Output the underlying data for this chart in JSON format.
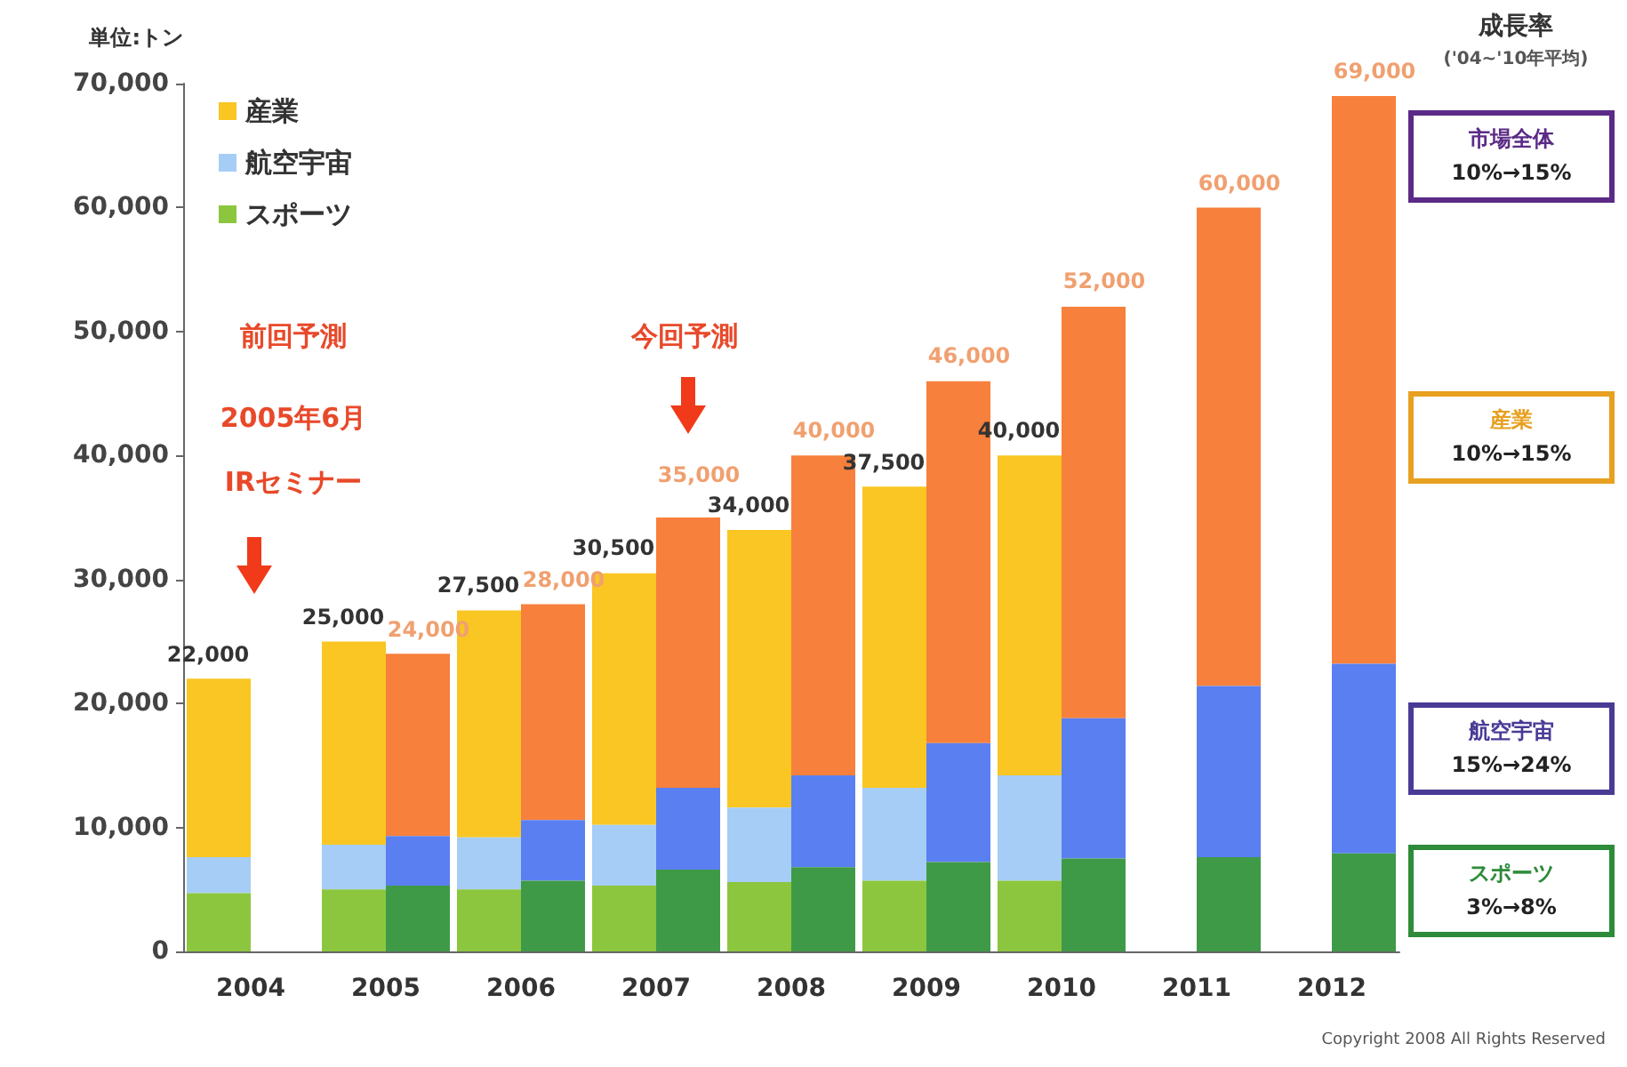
{
  "chart_data": {
    "type": "bar",
    "ylabel": "単位:トン",
    "categories": [
      "2004",
      "2005",
      "2006",
      "2007",
      "2008",
      "2009",
      "2010",
      "2011",
      "2012"
    ],
    "series": [
      {
        "name": "産業",
        "color": "#f9c623",
        "base": [
          7600,
          8600,
          9200,
          10200,
          11600,
          13200,
          14200,
          null,
          null
        ],
        "values": [
          14400,
          16400,
          18300,
          20300,
          22400,
          24300,
          25800,
          null,
          null
        ]
      },
      {
        "name": "航空宇宙",
        "color": "#a6cdf5",
        "base": [
          4700,
          5000,
          5000,
          5300,
          5600,
          5700,
          5700,
          null,
          null
        ],
        "values": [
          2900,
          3600,
          4200,
          4900,
          6000,
          7500,
          8500,
          null,
          null
        ]
      },
      {
        "name": "スポーツ",
        "color": "#8cc63f",
        "base": [
          0,
          0,
          0,
          0,
          0,
          0,
          0,
          null,
          null
        ],
        "values": [
          4700,
          5000,
          5000,
          5300,
          5600,
          5700,
          5700,
          null,
          null
        ]
      },
      {
        "color": "#f7803c",
        "base": [
          null,
          9300,
          10600,
          13200,
          14200,
          16800,
          18800,
          21400,
          23200
        ],
        "values": [
          null,
          14700,
          17400,
          21800,
          25800,
          29200,
          33200,
          38600,
          45800
        ]
      },
      {
        "color": "#5a7ff0",
        "base": [
          null,
          5300,
          5700,
          6600,
          6800,
          7200,
          7500,
          7600,
          7900
        ],
        "values": [
          null,
          4000,
          4900,
          6600,
          7400,
          9600,
          11300,
          13800,
          15300
        ]
      },
      {
        "color": "#3f9a48",
        "base": [
          null,
          0,
          0,
          0,
          0,
          0,
          0,
          0,
          0
        ],
        "values": [
          null,
          5300,
          5700,
          6600,
          6800,
          7200,
          7500,
          7600,
          7900
        ]
      }
    ],
    "ylim": [
      0,
      70000
    ],
    "yticks": [
      {
        "value": 0,
        "label": "0"
      },
      {
        "value": 10000,
        "label": "10,000"
      },
      {
        "value": 20000,
        "label": "20,000"
      },
      {
        "value": 30000,
        "label": "30,000"
      },
      {
        "value": 40000,
        "label": "40,000"
      },
      {
        "value": 50000,
        "label": "50,000"
      },
      {
        "value": 60000,
        "label": "60,000"
      },
      {
        "value": 70000,
        "label": "70,000"
      }
    ],
    "legend": "top left",
    "annotations": [
      "成長率",
      "('04~'10年平均)",
      "市場全体\n10%→15%",
      "産業\n10%→15%",
      "航空宇宙\n15%→24%",
      "スポーツ\n3%→8%",
      "Copyright 2008 All Rights Reserved",
      "前回予測",
      "2005年6月",
      "IRセミナー",
      "今回予測",
      {
        "text": "22,000",
        "x": "2004",
        "y": 22000
      },
      {
        "text": "25,000",
        "x": "2005",
        "y": 25000
      },
      {
        "text": "27,500",
        "x": "2006",
        "y": 27500
      },
      {
        "text": "30,500",
        "x": "2007",
        "y": 30500
      },
      {
        "text": "34,000",
        "x": "2008",
        "y": 34000
      },
      {
        "text": "37,500",
        "x": "2009",
        "y": 37500
      },
      {
        "text": "40,000",
        "x": "2010",
        "y": 40000
      },
      {
        "text": "24,000",
        "x": "2005",
        "y": 24000
      },
      {
        "text": "28,000",
        "x": "2006",
        "y": 28000
      },
      {
        "text": "35,000",
        "x": "2007",
        "y": 35000
      },
      {
        "text": "40,000",
        "x": "2008",
        "y": 40000
      },
      {
        "text": "46,000",
        "x": "2009",
        "y": 46000
      },
      {
        "text": "52,000",
        "x": "2010",
        "y": 52000
      },
      {
        "text": "60,000",
        "x": "2011",
        "y": 60000
      },
      {
        "text": "69,000",
        "x": "2012",
        "y": 69000
      }
    ]
  }
}
